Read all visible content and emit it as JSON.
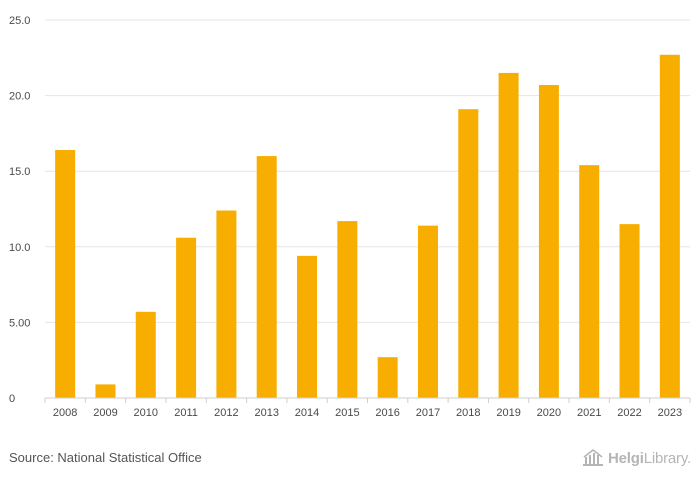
{
  "chart_data": {
    "type": "bar",
    "categories": [
      "2008",
      "2009",
      "2010",
      "2011",
      "2012",
      "2013",
      "2014",
      "2015",
      "2016",
      "2017",
      "2018",
      "2019",
      "2020",
      "2021",
      "2022",
      "2023"
    ],
    "values": [
      16.4,
      0.9,
      5.7,
      10.6,
      12.4,
      16.0,
      9.4,
      11.7,
      2.7,
      11.4,
      19.1,
      21.5,
      20.7,
      15.4,
      11.5,
      22.7
    ],
    "title": "",
    "xlabel": "",
    "ylabel": "",
    "ylim": [
      0,
      25
    ],
    "yticks": [
      {
        "value": 0,
        "label": "0"
      },
      {
        "value": 5,
        "label": "5.00"
      },
      {
        "value": 10,
        "label": "10.0"
      },
      {
        "value": 15,
        "label": "15.0"
      },
      {
        "value": 20,
        "label": "20.0"
      },
      {
        "value": 25,
        "label": "25.0"
      }
    ],
    "grid": true,
    "bar_color": "#f7ae00"
  },
  "footer": {
    "source": "Source: National Statistical Office"
  },
  "brand": {
    "icon": "library-building-icon",
    "name_bold": "Helgi",
    "name_regular": "Library."
  }
}
